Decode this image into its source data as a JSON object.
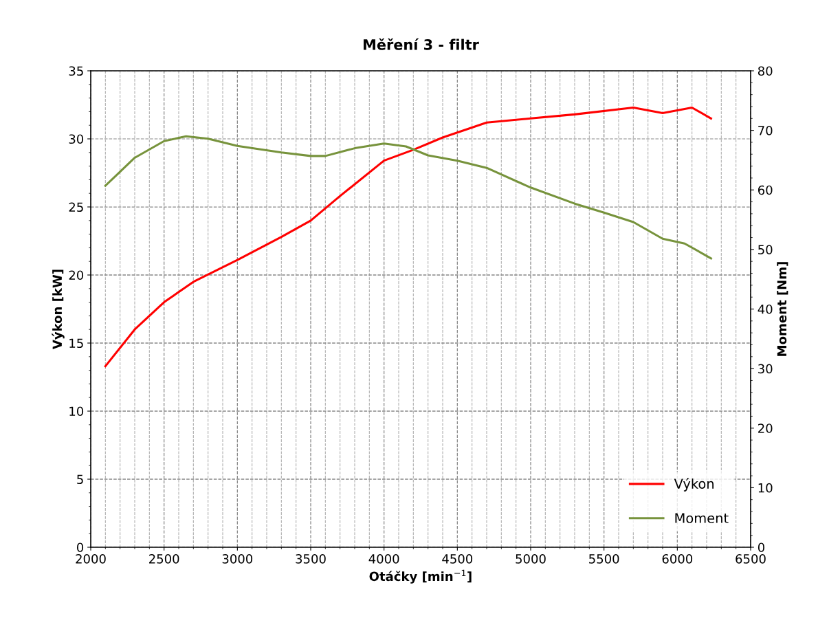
{
  "chart_data": {
    "type": "line",
    "title": "Měření 3 - filtr",
    "xlabel": "Otáčky [min$^{−1}$]",
    "ylabel": "Výkon [kW]",
    "y2label": "Moment [Nm]",
    "xlim": [
      2000,
      6500
    ],
    "xticks": [
      2000,
      2500,
      3000,
      3500,
      4000,
      4500,
      5000,
      5500,
      6000,
      6500
    ],
    "ylim": [
      0,
      35
    ],
    "yticks": [
      0,
      5,
      10,
      15,
      20,
      25,
      30,
      35
    ],
    "y2lim": [
      0,
      80
    ],
    "y2ticks": [
      0,
      10,
      20,
      30,
      40,
      50,
      60,
      70,
      80
    ],
    "grid": true,
    "legend": "bottom right",
    "marker": "none",
    "line_style": "solid",
    "series": [
      {
        "name": "Výkon",
        "color": "#ff0000",
        "x": [
          2100,
          2300,
          2500,
          2700,
          3000,
          3300,
          3500,
          3700,
          4000,
          4200,
          4400,
          4700,
          5000,
          5300,
          5700,
          5900,
          6100,
          6230
        ],
        "values": [
          13.3,
          16.0,
          18.0,
          19.5,
          21.1,
          22.8,
          24.0,
          25.8,
          28.4,
          29.2,
          30.1,
          31.2,
          31.5,
          31.8,
          32.3,
          31.9,
          32.3,
          31.5
        ]
      },
      {
        "name": "Moment",
        "color": "#77933c",
        "axis": "y2",
        "x": [
          2100,
          2300,
          2500,
          2650,
          2800,
          3000,
          3300,
          3500,
          3600,
          3800,
          4000,
          4150,
          4300,
          4500,
          4700,
          5000,
          5300,
          5500,
          5700,
          5900,
          6050,
          6230
        ],
        "values": [
          60.7,
          65.4,
          68.2,
          69.0,
          68.6,
          67.4,
          66.3,
          65.7,
          65.7,
          67.0,
          67.8,
          67.3,
          65.8,
          64.9,
          63.7,
          60.4,
          57.7,
          56.2,
          54.6,
          51.8,
          51.0,
          48.5
        ]
      }
    ]
  }
}
